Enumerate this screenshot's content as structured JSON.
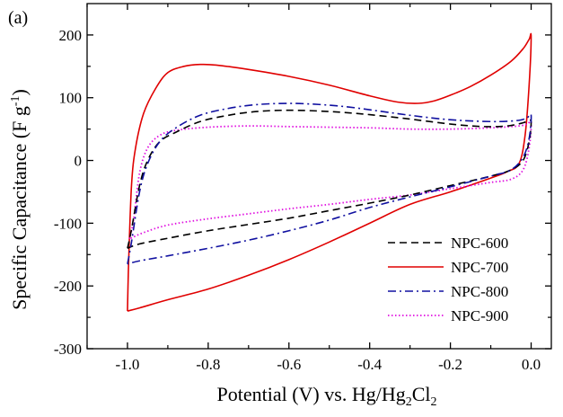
{
  "panel_label": "(a)",
  "chart_data": {
    "type": "line",
    "title": "",
    "xlabel": {
      "main": "Potential (V) vs. Hg/Hg",
      "sub1": "2",
      "mid": "Cl",
      "sub2": "2"
    },
    "ylabel": {
      "main": "Specific Capacitance (F g",
      "sup": "-1",
      "tail": ")"
    },
    "xlim": [
      -1.1,
      0.05
    ],
    "ylim": [
      -300,
      250
    ],
    "xticks": [
      -1.0,
      -0.8,
      -0.6,
      -0.4,
      -0.2,
      0.0
    ],
    "xtick_labels": [
      "-1.0",
      "-0.8",
      "-0.6",
      "-0.4",
      "-0.2",
      "0.0"
    ],
    "yticks": [
      -300,
      -200,
      -100,
      0,
      100,
      200
    ],
    "ytick_labels": [
      "-300",
      "-200",
      "-100",
      "0",
      "100",
      "200"
    ],
    "grid": false,
    "legend_position": "bottom-right",
    "series": [
      {
        "name": "NPC-600",
        "color": "#000000",
        "dash": "dash",
        "x": [
          -1.0,
          -0.99,
          -0.97,
          -0.95,
          -0.92,
          -0.88,
          -0.82,
          -0.75,
          -0.68,
          -0.6,
          -0.5,
          -0.4,
          -0.3,
          -0.2,
          -0.12,
          -0.06,
          -0.02,
          -0.005,
          0.0,
          -0.005,
          -0.02,
          -0.05,
          -0.1,
          -0.2,
          -0.3,
          -0.4,
          -0.5,
          -0.6,
          -0.7,
          -0.8,
          -0.9,
          -0.97,
          -1.0
        ],
        "y": [
          -140,
          -110,
          -40,
          0,
          30,
          45,
          62,
          72,
          78,
          80,
          78,
          73,
          66,
          58,
          54,
          55,
          60,
          64,
          60,
          30,
          0,
          -15,
          -25,
          -40,
          -55,
          -68,
          -80,
          -92,
          -102,
          -112,
          -124,
          -133,
          -140
        ]
      },
      {
        "name": "NPC-700",
        "color": "#e00000",
        "dash": "solid",
        "x": [
          -1.0,
          -0.997,
          -0.99,
          -0.98,
          -0.96,
          -0.93,
          -0.9,
          -0.86,
          -0.82,
          -0.78,
          -0.7,
          -0.6,
          -0.5,
          -0.4,
          -0.33,
          -0.28,
          -0.24,
          -0.2,
          -0.15,
          -0.1,
          -0.05,
          -0.02,
          -0.005,
          0.0,
          -0.005,
          -0.015,
          -0.03,
          -0.06,
          -0.1,
          -0.2,
          -0.3,
          -0.4,
          -0.5,
          -0.6,
          -0.7,
          -0.8,
          -0.9,
          -0.97,
          -1.0
        ],
        "y": [
          -240,
          -160,
          -40,
          20,
          75,
          115,
          140,
          150,
          153,
          152,
          145,
          134,
          120,
          103,
          93,
          91,
          95,
          104,
          118,
          136,
          158,
          178,
          193,
          197,
          120,
          40,
          -5,
          -18,
          -28,
          -50,
          -70,
          -100,
          -130,
          -158,
          -183,
          -205,
          -222,
          -235,
          -240
        ]
      },
      {
        "name": "NPC-800",
        "color": "#1010a0",
        "dash": "dashdot",
        "x": [
          -1.0,
          -0.99,
          -0.97,
          -0.95,
          -0.92,
          -0.88,
          -0.82,
          -0.75,
          -0.68,
          -0.6,
          -0.52,
          -0.45,
          -0.38,
          -0.3,
          -0.22,
          -0.15,
          -0.08,
          -0.03,
          -0.01,
          0.0,
          -0.005,
          -0.02,
          -0.05,
          -0.1,
          -0.2,
          -0.3,
          -0.4,
          -0.5,
          -0.6,
          -0.7,
          -0.8,
          -0.9,
          -0.97,
          -1.0
        ],
        "y": [
          -165,
          -130,
          -50,
          -5,
          30,
          52,
          72,
          83,
          89,
          91,
          89,
          85,
          79,
          72,
          66,
          63,
          62,
          64,
          68,
          72,
          35,
          5,
          -15,
          -25,
          -42,
          -58,
          -75,
          -95,
          -112,
          -127,
          -140,
          -152,
          -160,
          -165
        ]
      },
      {
        "name": "NPC-900",
        "color": "#e010e0",
        "dash": "dot",
        "x": [
          -0.995,
          -0.985,
          -0.97,
          -0.95,
          -0.92,
          -0.88,
          -0.8,
          -0.7,
          -0.6,
          -0.5,
          -0.4,
          -0.3,
          -0.2,
          -0.1,
          -0.03,
          -0.01,
          0.0,
          -0.005,
          -0.02,
          -0.05,
          -0.1,
          -0.2,
          -0.3,
          -0.4,
          -0.5,
          -0.6,
          -0.7,
          -0.8,
          -0.9,
          -0.96,
          -0.995
        ],
        "y": [
          -125,
          -95,
          -20,
          20,
          40,
          48,
          53,
          55,
          54,
          53,
          52,
          50,
          50,
          52,
          55,
          58,
          60,
          20,
          -15,
          -30,
          -35,
          -45,
          -55,
          -62,
          -70,
          -77,
          -85,
          -93,
          -103,
          -115,
          -125
        ]
      }
    ]
  }
}
